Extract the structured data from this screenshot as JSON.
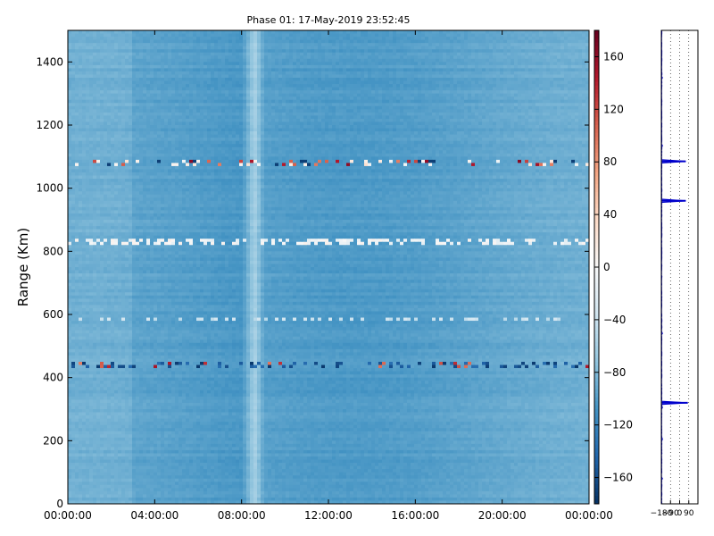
{
  "chart_data": [
    {
      "type": "heatmap",
      "title": "Phase 01: 17-May-2019 23:52:45",
      "xlabel": "",
      "ylabel": "Range (Km)",
      "x_ticks": [
        "00:00:00",
        "04:00:00",
        "08:00:00",
        "12:00:00",
        "16:00:00",
        "20:00:00",
        "00:00:00"
      ],
      "x_range_hours": [
        0,
        24
      ],
      "y_ticks": [
        0,
        200,
        400,
        600,
        800,
        1000,
        1200,
        1400
      ],
      "ylim": [
        0,
        1500
      ],
      "colormap": "RdBu_r",
      "value_range": [
        -180,
        180
      ],
      "background_level": -95,
      "bright_column_hours": 8.6,
      "anomaly_bands_km": [
        {
          "range": 1085,
          "tone": "mixed-red"
        },
        {
          "range": 835,
          "tone": "white"
        },
        {
          "range": 590,
          "tone": "light"
        },
        {
          "range": 445,
          "tone": "dark-blue"
        }
      ],
      "colorbar": {
        "ticks": [
          160,
          120,
          80,
          40,
          0,
          -40,
          -80,
          -120,
          -160
        ],
        "range": [
          -180,
          180
        ]
      }
    },
    {
      "type": "line",
      "title": "",
      "xlabel": "",
      "ylabel": "",
      "x_ticks": [
        "−180",
        "−90",
        "0",
        "90"
      ],
      "xlim": [
        -180,
        180
      ],
      "ylim": [
        0,
        1500
      ],
      "baseline": -180,
      "spikes": [
        {
          "range": 1085,
          "value": 60
        },
        {
          "range": 960,
          "value": 60
        },
        {
          "range": 320,
          "value": 80
        }
      ]
    }
  ]
}
